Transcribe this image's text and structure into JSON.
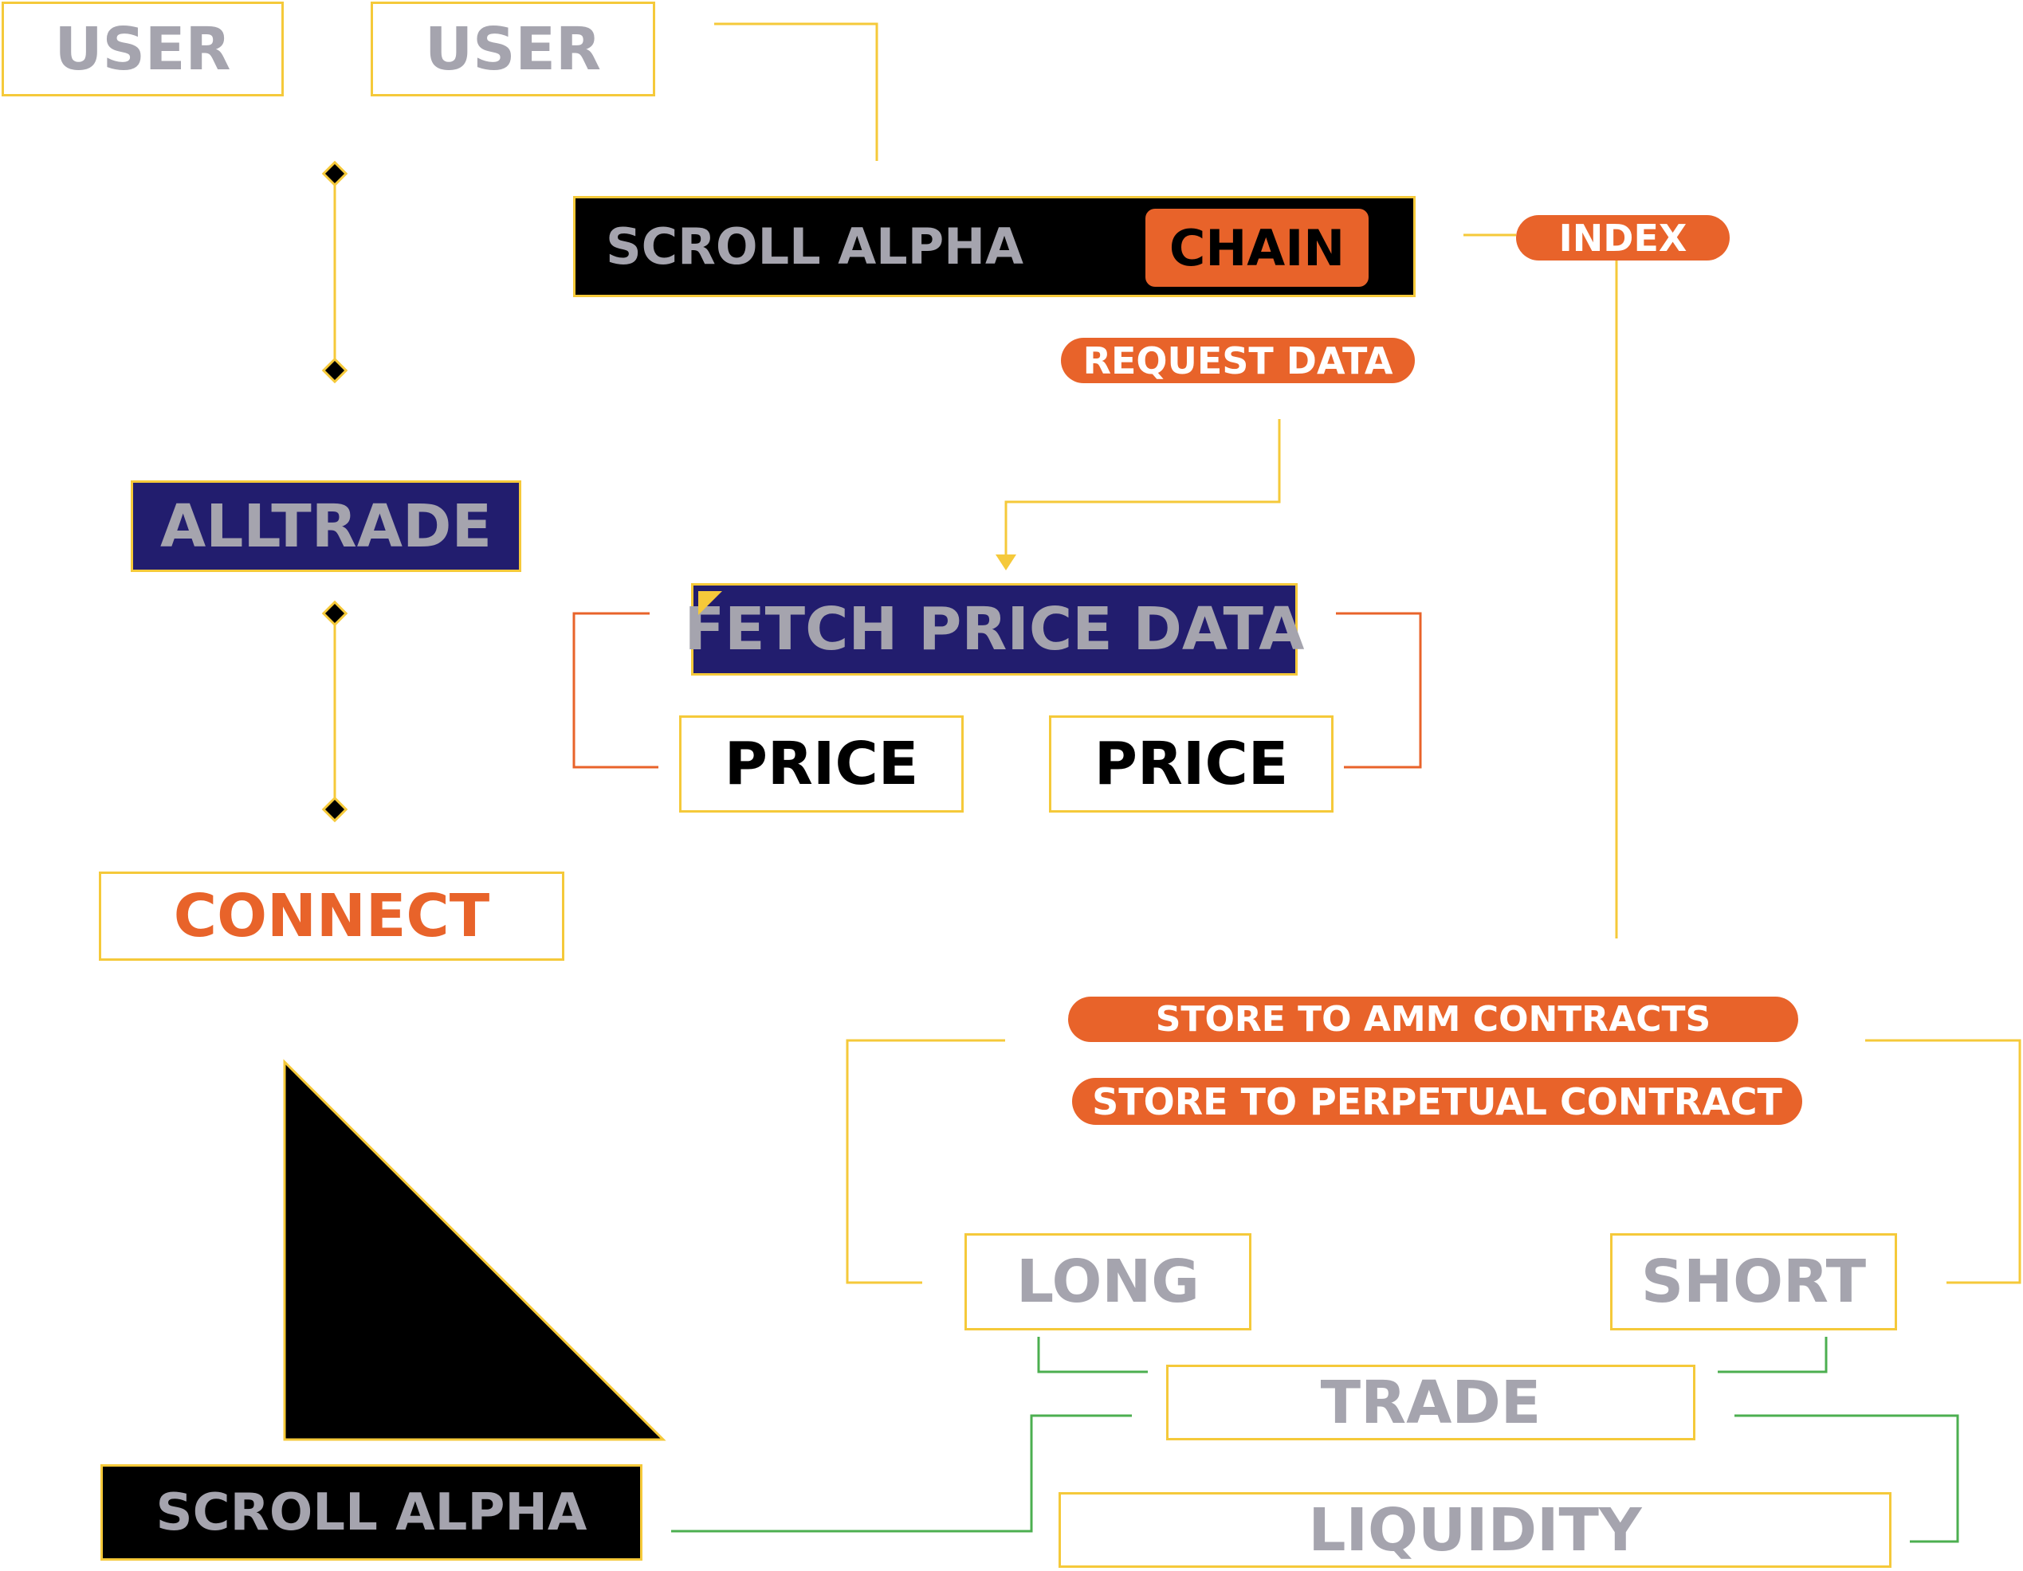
{
  "colors": {
    "yellow": "#f5c93a",
    "orange": "#e8632a",
    "navy": "#221d6e",
    "grey": "#a5a4ae",
    "green": "#4caf50",
    "black": "#000000"
  },
  "nodes": {
    "user_1": "USER",
    "user_2": "USER",
    "scroll_alpha_top": "SCROLL ALPHA",
    "chain": "CHAIN",
    "index": "INDEX",
    "request_data": "REQUEST DATA",
    "alltrade": "ALLTRADE",
    "fetch_price_data": "FETCH PRICE DATA",
    "price_1": "PRICE",
    "price_2": "PRICE",
    "connect": "CONNECT",
    "store_amm": "STORE TO AMM CONTRACTS",
    "store_perpetual": "STORE TO PERPETUAL CONTRACT",
    "long": "LONG",
    "short": "SHORT",
    "trade": "TRADE",
    "liquidity": "LIQUIDITY",
    "scroll_alpha_bottom": "SCROLL ALPHA"
  },
  "icons": {
    "diamond": "diamond-marker-icon",
    "arrowhead": "arrow-down-icon",
    "triangle": "right-triangle-shape"
  }
}
